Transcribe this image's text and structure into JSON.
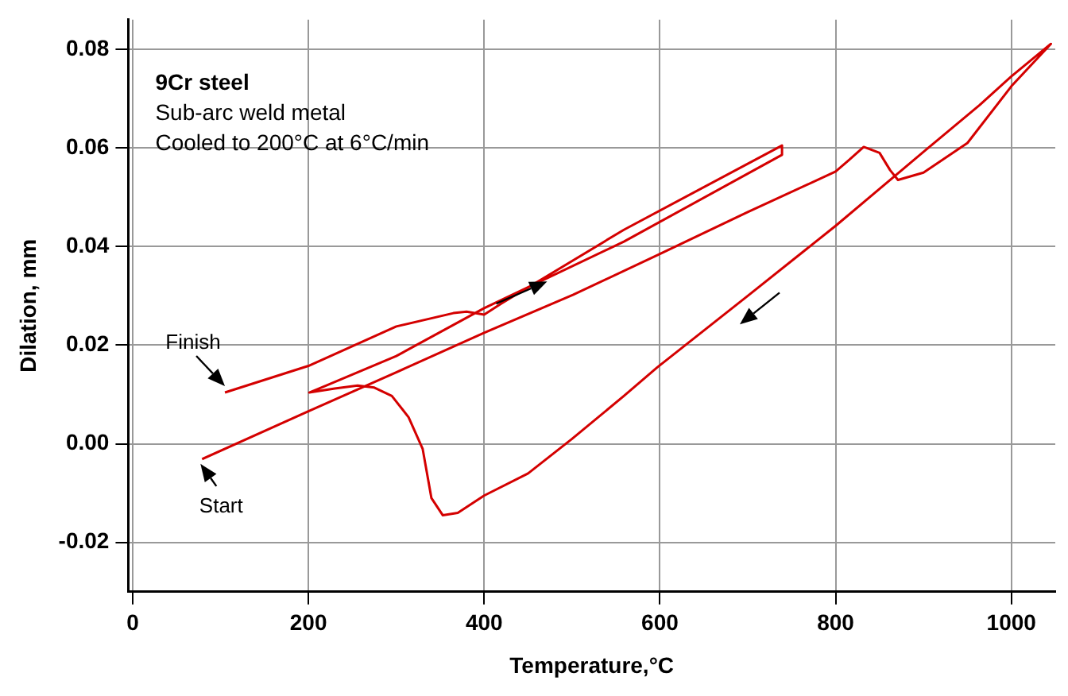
{
  "chart_data": {
    "type": "line",
    "xlabel": "Temperature,°C",
    "ylabel": "Dilation, mm",
    "xlim": [
      -5,
      1050
    ],
    "xticks": [
      0,
      200,
      400,
      600,
      800,
      1000
    ],
    "ylim": [
      -0.03,
      0.086
    ],
    "yticks": [
      -0.02,
      {
        "value": 0,
        "label": "0.00"
      },
      0.02,
      0.04,
      0.06,
      0.08
    ],
    "grid": true,
    "legend": false,
    "marker": "none",
    "line_style": "solid",
    "series": [
      {
        "color": "#d40000",
        "x": [
          79,
          200,
          300,
          400,
          501,
          600,
          700,
          800,
          815,
          832,
          850,
          862,
          871,
          900,
          950,
          1000,
          1045,
          1000,
          964,
          900,
          800,
          700,
          597,
          559,
          500,
          450,
          400,
          370,
          353,
          340,
          330,
          314,
          295,
          275,
          256,
          230,
          201,
          220,
          300,
          400,
          559,
          739,
          739,
          559,
          420,
          400,
          380,
          365,
          300,
          200,
          105
        ],
        "values": [
          -0.0031,
          0.0066,
          0.0145,
          0.0225,
          0.0302,
          0.0385,
          0.047,
          0.0552,
          0.0575,
          0.0602,
          0.059,
          0.0555,
          0.0535,
          0.055,
          0.061,
          0.0725,
          0.0811,
          0.0745,
          0.0687,
          0.0592,
          0.0442,
          0.03,
          0.0155,
          0.0097,
          0.001,
          -0.006,
          -0.0105,
          -0.014,
          -0.0145,
          -0.011,
          -0.001,
          0.0054,
          0.0097,
          0.0114,
          0.0118,
          0.0112,
          0.0104,
          0.0118,
          0.0178,
          0.0275,
          0.041,
          0.0586,
          0.0605,
          0.0434,
          0.0285,
          0.0262,
          0.0268,
          0.0265,
          0.0238,
          0.0158,
          0.0104
        ]
      }
    ],
    "annotations": [
      "9Cr steel",
      "Sub-arc weld metal",
      "Cooled to 200°C at 6°C/min",
      {
        "text": "Finish",
        "x": 105,
        "y": 0.0104
      },
      {
        "text": "Start",
        "x": 79,
        "y": -0.0031
      }
    ]
  }
}
